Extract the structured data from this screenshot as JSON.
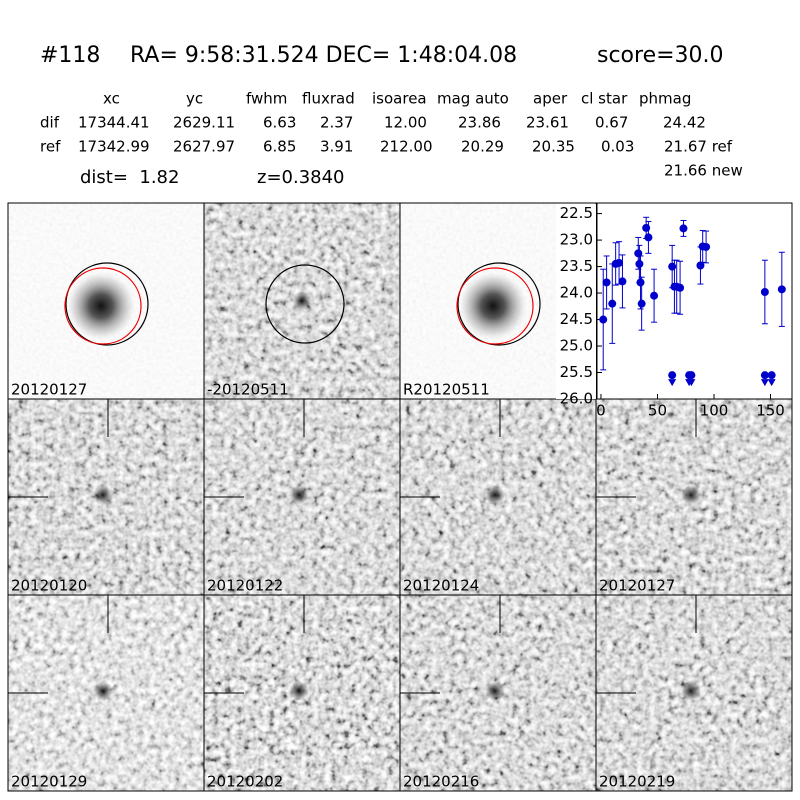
{
  "header": {
    "id": "#118",
    "coords": "RA= 9:58:31.524 DEC= 1:48:04.08",
    "score": "score=30.0"
  },
  "table": {
    "columns": [
      "xc",
      "yc",
      "fwhm",
      "fluxrad",
      "isoarea",
      "mag auto",
      "aper",
      "cl star",
      "phmag"
    ],
    "rows": [
      [
        "dif",
        "17344.41",
        "2629.11",
        "6.63",
        "2.37",
        "12.00",
        "23.86",
        "23.61",
        "0.67",
        "24.42"
      ],
      [
        "ref",
        "17342.99",
        "2627.97",
        "6.85",
        "3.91",
        "212.00",
        "20.29",
        "20.35",
        "0.03",
        "21.67 ref"
      ]
    ],
    "note": "21.66 new"
  },
  "summary": {
    "dist": "dist=  1.82",
    "z": "z=0.3840"
  },
  "stamps": [
    {
      "label": "20120127"
    },
    {
      "label": "-20120511"
    },
    {
      "label": "R20120511"
    },
    {
      "label": "20120120"
    },
    {
      "label": "20120122"
    },
    {
      "label": "20120124"
    },
    {
      "label": "20120127",
      "color": "#ff0000"
    },
    {
      "label": "20120129"
    },
    {
      "label": "20120202"
    },
    {
      "label": "20120216"
    },
    {
      "label": "20120219"
    }
  ],
  "chart_data": {
    "type": "scatter",
    "xlim": [
      -3.5,
      169
    ],
    "xticks": [
      0,
      50,
      100,
      150
    ],
    "ylim": [
      26.0,
      22.3
    ],
    "yticks": [
      22.5,
      {
        "value": 23,
        "label": "23.0"
      },
      23.5,
      {
        "value": 24,
        "label": "24.0"
      },
      24.5,
      {
        "value": 25,
        "label": "25.0"
      },
      25.5,
      {
        "value": 26,
        "label": "26.0"
      }
    ],
    "series": [
      {
        "color": "#0000cc",
        "x": [
          2,
          5,
          10,
          13,
          16,
          19,
          33,
          34,
          35,
          36,
          40,
          42,
          47,
          63,
          65,
          67,
          70,
          73,
          88,
          90,
          93,
          145,
          160
        ],
        "values": [
          24.5,
          23.8,
          24.2,
          23.45,
          23.43,
          23.78,
          23.25,
          23.45,
          23.8,
          24.2,
          22.77,
          22.95,
          24.05,
          23.5,
          23.88,
          23.88,
          23.9,
          22.78,
          23.48,
          23.12,
          23.13,
          23.98,
          23.93
        ],
        "errors": [
          0.95,
          0.5,
          0.75,
          0.4,
          0.4,
          0.5,
          0.3,
          0.35,
          0.5,
          0.5,
          0.2,
          0.3,
          0.5,
          0.4,
          0.5,
          0.5,
          0.5,
          0.15,
          0.35,
          0.3,
          0.3,
          0.6,
          0.7
        ]
      },
      {
        "color": "#0000cc",
        "marker": "limit",
        "x": [
          63,
          78,
          80,
          145,
          151
        ],
        "values": [
          25.55,
          25.55,
          25.55,
          25.55,
          25.55
        ]
      }
    ]
  }
}
